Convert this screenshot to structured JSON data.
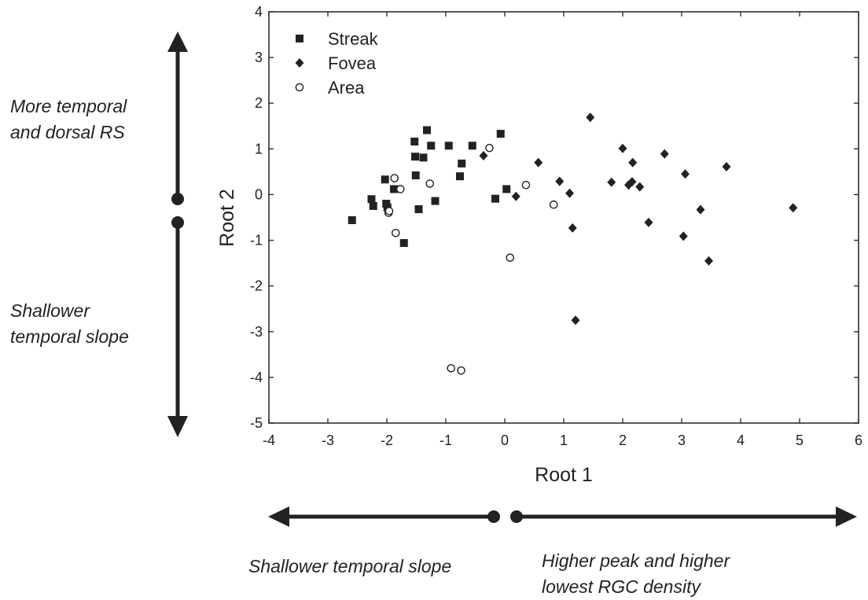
{
  "chart_data": {
    "type": "scatter",
    "title": "",
    "xlabel": "Root 1",
    "ylabel": "Root 2",
    "xlim": [
      -4,
      6
    ],
    "ylim": [
      -5,
      4
    ],
    "x_ticks": [
      "-4",
      "-3",
      "-2",
      "-1",
      "0",
      "1",
      "2",
      "3",
      "4",
      "5",
      "6"
    ],
    "y_ticks": [
      "4",
      "3",
      "2",
      "1",
      "0",
      "-1",
      "-2",
      "-3",
      "-4",
      "-5"
    ],
    "grid": false,
    "legend_position": "top-left",
    "series": [
      {
        "name": "Streak",
        "marker": "filled-square",
        "points": [
          [
            -2.59,
            -0.56
          ],
          [
            -2.26,
            -0.1
          ],
          [
            -2.23,
            -0.25
          ],
          [
            -2.03,
            0.33
          ],
          [
            -2.01,
            -0.2
          ],
          [
            -1.99,
            -0.28
          ],
          [
            -1.88,
            0.12
          ],
          [
            -1.71,
            -1.06
          ],
          [
            -1.53,
            1.16
          ],
          [
            -1.52,
            0.83
          ],
          [
            -1.51,
            0.42
          ],
          [
            -1.46,
            -0.32
          ],
          [
            -1.38,
            0.81
          ],
          [
            -1.32,
            1.41
          ],
          [
            -1.25,
            1.07
          ],
          [
            -1.18,
            -0.14
          ],
          [
            -0.95,
            1.07
          ],
          [
            -0.76,
            0.4
          ],
          [
            -0.73,
            0.68
          ],
          [
            -0.55,
            1.07
          ],
          [
            -0.16,
            -0.09
          ],
          [
            -0.07,
            1.33
          ],
          [
            0.03,
            0.12
          ]
        ]
      },
      {
        "name": "Fovea",
        "marker": "filled-diamond",
        "points": [
          [
            -0.36,
            0.85
          ],
          [
            0.19,
            -0.04
          ],
          [
            0.57,
            0.7
          ],
          [
            0.93,
            0.29
          ],
          [
            1.1,
            0.03
          ],
          [
            1.15,
            -0.73
          ],
          [
            1.2,
            -2.75
          ],
          [
            1.45,
            1.69
          ],
          [
            1.81,
            0.27
          ],
          [
            2.0,
            1.01
          ],
          [
            2.1,
            0.21
          ],
          [
            2.16,
            0.28
          ],
          [
            2.17,
            0.7
          ],
          [
            2.29,
            0.17
          ],
          [
            2.44,
            -0.61
          ],
          [
            2.71,
            0.89
          ],
          [
            3.03,
            -0.91
          ],
          [
            3.06,
            0.45
          ],
          [
            3.32,
            -0.33
          ],
          [
            3.46,
            -1.45
          ],
          [
            3.76,
            0.61
          ],
          [
            4.89,
            -0.29
          ]
        ]
      },
      {
        "name": "Area",
        "marker": "open-circle",
        "points": [
          [
            -1.97,
            -0.4
          ],
          [
            -1.96,
            -0.36
          ],
          [
            -1.87,
            0.36
          ],
          [
            -1.85,
            -0.84
          ],
          [
            -1.77,
            0.12
          ],
          [
            -1.27,
            0.24
          ],
          [
            -0.91,
            -3.8
          ],
          [
            -0.74,
            -3.85
          ],
          [
            -0.26,
            1.02
          ],
          [
            0.09,
            -1.38
          ],
          [
            0.36,
            0.21
          ],
          [
            0.83,
            -0.22
          ]
        ]
      }
    ]
  },
  "annotations": {
    "left_upper": "More temporal\nand dorsal RS",
    "left_lower": "Shallower\ntemporal slope",
    "bottom_left": "Shallower temporal slope",
    "bottom_right": "Higher peak and higher\nlowest RGC density"
  }
}
